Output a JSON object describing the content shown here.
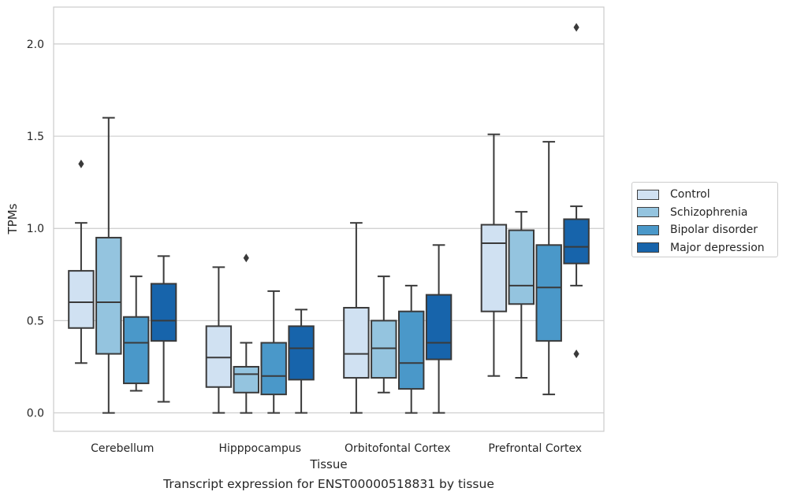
{
  "chart_data": {
    "type": "box",
    "title": "",
    "caption": "Transcript expression for ENST00000518831 by tissue",
    "xlabel": "Tissue",
    "ylabel": "TPMs",
    "ylim": [
      -0.1,
      2.2
    ],
    "yticks": [
      "0.0",
      "0.5",
      "1.0",
      "1.5",
      "2.0"
    ],
    "grid": true,
    "legend_position": "right",
    "categories": [
      "Cerebellum",
      "Hipppocampus",
      "Orbitofontal Cortex",
      "Prefrontal Cortex"
    ],
    "series": [
      {
        "name": "Control",
        "color": "#d0e1f2",
        "boxes": [
          {
            "whisker_low": 0.27,
            "q1": 0.46,
            "median": 0.6,
            "q3": 0.77,
            "whisker_high": 1.03,
            "outliers": [
              1.35
            ]
          },
          {
            "whisker_low": 0.0,
            "q1": 0.14,
            "median": 0.3,
            "q3": 0.47,
            "whisker_high": 0.79,
            "outliers": []
          },
          {
            "whisker_low": 0.0,
            "q1": 0.19,
            "median": 0.32,
            "q3": 0.57,
            "whisker_high": 1.03,
            "outliers": []
          },
          {
            "whisker_low": 0.2,
            "q1": 0.55,
            "median": 0.92,
            "q3": 1.02,
            "whisker_high": 1.51,
            "outliers": []
          }
        ]
      },
      {
        "name": "Schizophrenia",
        "color": "#94c4df",
        "boxes": [
          {
            "whisker_low": 0.0,
            "q1": 0.32,
            "median": 0.6,
            "q3": 0.95,
            "whisker_high": 1.6,
            "outliers": []
          },
          {
            "whisker_low": 0.0,
            "q1": 0.11,
            "median": 0.21,
            "q3": 0.25,
            "whisker_high": 0.38,
            "outliers": [
              0.84
            ]
          },
          {
            "whisker_low": 0.11,
            "q1": 0.19,
            "median": 0.35,
            "q3": 0.5,
            "whisker_high": 0.74,
            "outliers": []
          },
          {
            "whisker_low": 0.19,
            "q1": 0.59,
            "median": 0.69,
            "q3": 0.99,
            "whisker_high": 1.09,
            "outliers": []
          }
        ]
      },
      {
        "name": "Bipolar disorder",
        "color": "#4a98c9",
        "boxes": [
          {
            "whisker_low": 0.12,
            "q1": 0.16,
            "median": 0.38,
            "q3": 0.52,
            "whisker_high": 0.74,
            "outliers": []
          },
          {
            "whisker_low": 0.0,
            "q1": 0.1,
            "median": 0.2,
            "q3": 0.38,
            "whisker_high": 0.66,
            "outliers": []
          },
          {
            "whisker_low": 0.0,
            "q1": 0.13,
            "median": 0.27,
            "q3": 0.55,
            "whisker_high": 0.69,
            "outliers": []
          },
          {
            "whisker_low": 0.1,
            "q1": 0.39,
            "median": 0.68,
            "q3": 0.91,
            "whisker_high": 1.47,
            "outliers": []
          }
        ]
      },
      {
        "name": "Major depression",
        "color": "#1764ab",
        "boxes": [
          {
            "whisker_low": 0.06,
            "q1": 0.39,
            "median": 0.5,
            "q3": 0.7,
            "whisker_high": 0.85,
            "outliers": []
          },
          {
            "whisker_low": 0.0,
            "q1": 0.18,
            "median": 0.35,
            "q3": 0.47,
            "whisker_high": 0.56,
            "outliers": []
          },
          {
            "whisker_low": 0.0,
            "q1": 0.29,
            "median": 0.38,
            "q3": 0.64,
            "whisker_high": 0.91,
            "outliers": []
          },
          {
            "whisker_low": 0.69,
            "q1": 0.81,
            "median": 0.9,
            "q3": 1.05,
            "whisker_high": 1.12,
            "outliers": [
              2.09,
              0.32
            ]
          }
        ]
      }
    ]
  }
}
